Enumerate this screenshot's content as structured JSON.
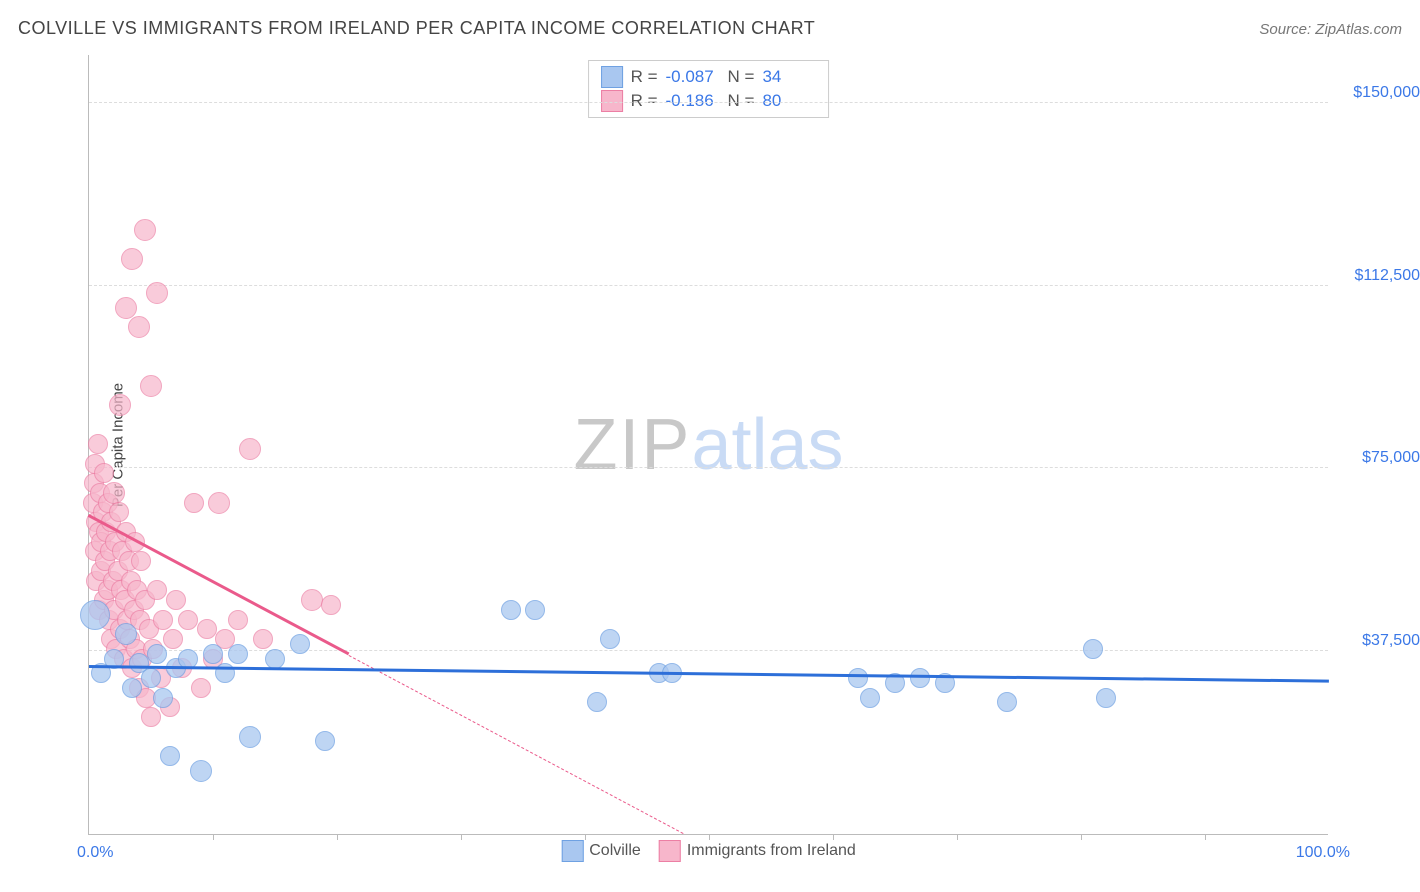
{
  "header": {
    "title": "COLVILLE VS IMMIGRANTS FROM IRELAND PER CAPITA INCOME CORRELATION CHART",
    "source_prefix": "Source: ",
    "source": "ZipAtlas.com"
  },
  "ylabel": "Per Capita Income",
  "watermark": {
    "part1": "ZIP",
    "part2": "atlas"
  },
  "chart": {
    "type": "scatter",
    "xlim": [
      0,
      100
    ],
    "ylim": [
      0,
      160000
    ],
    "ytick_values": [
      37500,
      75000,
      112500,
      150000
    ],
    "ytick_labels": [
      "$37,500",
      "$75,000",
      "$112,500",
      "$150,000"
    ],
    "xtick_positions": [
      10,
      20,
      30,
      40,
      50,
      60,
      70,
      80,
      90
    ],
    "xlabel_min": "0.0%",
    "xlabel_max": "100.0%",
    "background_color": "#ffffff",
    "grid_color": "#dddddd",
    "axis_color": "#bbbbbb",
    "tick_label_color": "#3b78e7"
  },
  "series": {
    "colville": {
      "label": "Colville",
      "fill": "#a9c7f0",
      "stroke": "#6fa1e2",
      "opacity": 0.75,
      "marker_radius": 9,
      "trend": {
        "x1": 0,
        "y1": 34000,
        "x2": 100,
        "y2": 31000,
        "color": "#2d6fd9",
        "width": 3,
        "dashed_from": null
      },
      "stats": {
        "r": "-0.087",
        "n": "34"
      },
      "points": [
        {
          "x": 0.5,
          "y": 45000,
          "r": 14
        },
        {
          "x": 1.0,
          "y": 33000,
          "r": 9
        },
        {
          "x": 2.0,
          "y": 36000,
          "r": 9
        },
        {
          "x": 3.0,
          "y": 41000,
          "r": 10
        },
        {
          "x": 3.5,
          "y": 30000,
          "r": 9
        },
        {
          "x": 4.0,
          "y": 35000,
          "r": 9
        },
        {
          "x": 5.0,
          "y": 32000,
          "r": 9
        },
        {
          "x": 5.5,
          "y": 37000,
          "r": 9
        },
        {
          "x": 6.0,
          "y": 28000,
          "r": 9
        },
        {
          "x": 6.5,
          "y": 16000,
          "r": 9
        },
        {
          "x": 7.0,
          "y": 34000,
          "r": 9
        },
        {
          "x": 8.0,
          "y": 36000,
          "r": 9
        },
        {
          "x": 9.0,
          "y": 13000,
          "r": 10
        },
        {
          "x": 10.0,
          "y": 37000,
          "r": 9
        },
        {
          "x": 11.0,
          "y": 33000,
          "r": 9
        },
        {
          "x": 12.0,
          "y": 37000,
          "r": 9
        },
        {
          "x": 13.0,
          "y": 20000,
          "r": 10
        },
        {
          "x": 15.0,
          "y": 36000,
          "r": 9
        },
        {
          "x": 17.0,
          "y": 39000,
          "r": 9
        },
        {
          "x": 19.0,
          "y": 19000,
          "r": 9
        },
        {
          "x": 34.0,
          "y": 46000,
          "r": 9
        },
        {
          "x": 36.0,
          "y": 46000,
          "r": 9
        },
        {
          "x": 41.0,
          "y": 27000,
          "r": 9
        },
        {
          "x": 42.0,
          "y": 40000,
          "r": 9
        },
        {
          "x": 46.0,
          "y": 33000,
          "r": 9
        },
        {
          "x": 47.0,
          "y": 33000,
          "r": 9
        },
        {
          "x": 62.0,
          "y": 32000,
          "r": 9
        },
        {
          "x": 63.0,
          "y": 28000,
          "r": 9
        },
        {
          "x": 65.0,
          "y": 31000,
          "r": 9
        },
        {
          "x": 67.0,
          "y": 32000,
          "r": 9
        },
        {
          "x": 69.0,
          "y": 31000,
          "r": 9
        },
        {
          "x": 74.0,
          "y": 27000,
          "r": 9
        },
        {
          "x": 81.0,
          "y": 38000,
          "r": 9
        },
        {
          "x": 82.0,
          "y": 28000,
          "r": 9
        }
      ]
    },
    "ireland": {
      "label": "Immigrants from Ireland",
      "fill": "#f7b6cb",
      "stroke": "#ec7fa4",
      "opacity": 0.7,
      "marker_radius": 9,
      "trend": {
        "x1": 0,
        "y1": 65000,
        "x2": 48,
        "y2": 0,
        "color": "#ea5a8b",
        "width": 3,
        "dashed_from": 21
      },
      "stats": {
        "r": "-0.186",
        "n": "80"
      },
      "points": [
        {
          "x": 0.3,
          "y": 68000,
          "r": 9
        },
        {
          "x": 0.4,
          "y": 72000,
          "r": 9
        },
        {
          "x": 0.5,
          "y": 58000,
          "r": 9
        },
        {
          "x": 0.5,
          "y": 76000,
          "r": 9
        },
        {
          "x": 0.6,
          "y": 64000,
          "r": 9
        },
        {
          "x": 0.6,
          "y": 52000,
          "r": 9
        },
        {
          "x": 0.7,
          "y": 80000,
          "r": 9
        },
        {
          "x": 0.8,
          "y": 62000,
          "r": 9
        },
        {
          "x": 0.8,
          "y": 46000,
          "r": 9
        },
        {
          "x": 0.9,
          "y": 70000,
          "r": 9
        },
        {
          "x": 1.0,
          "y": 54000,
          "r": 9
        },
        {
          "x": 1.0,
          "y": 60000,
          "r": 9
        },
        {
          "x": 1.1,
          "y": 66000,
          "r": 9
        },
        {
          "x": 1.2,
          "y": 48000,
          "r": 9
        },
        {
          "x": 1.2,
          "y": 74000,
          "r": 9
        },
        {
          "x": 1.3,
          "y": 56000,
          "r": 9
        },
        {
          "x": 1.4,
          "y": 62000,
          "r": 9
        },
        {
          "x": 1.5,
          "y": 50000,
          "r": 9
        },
        {
          "x": 1.5,
          "y": 68000,
          "r": 9
        },
        {
          "x": 1.6,
          "y": 44000,
          "r": 9
        },
        {
          "x": 1.7,
          "y": 58000,
          "r": 9
        },
        {
          "x": 1.8,
          "y": 64000,
          "r": 9
        },
        {
          "x": 1.8,
          "y": 40000,
          "r": 9
        },
        {
          "x": 1.9,
          "y": 52000,
          "r": 9
        },
        {
          "x": 2.0,
          "y": 70000,
          "r": 10
        },
        {
          "x": 2.0,
          "y": 46000,
          "r": 9
        },
        {
          "x": 2.1,
          "y": 60000,
          "r": 9
        },
        {
          "x": 2.2,
          "y": 38000,
          "r": 9
        },
        {
          "x": 2.3,
          "y": 54000,
          "r": 9
        },
        {
          "x": 2.4,
          "y": 66000,
          "r": 9
        },
        {
          "x": 2.5,
          "y": 42000,
          "r": 9
        },
        {
          "x": 2.5,
          "y": 88000,
          "r": 10
        },
        {
          "x": 2.6,
          "y": 50000,
          "r": 9
        },
        {
          "x": 2.7,
          "y": 58000,
          "r": 9
        },
        {
          "x": 2.8,
          "y": 36000,
          "r": 9
        },
        {
          "x": 2.9,
          "y": 48000,
          "r": 9
        },
        {
          "x": 3.0,
          "y": 62000,
          "r": 9
        },
        {
          "x": 3.0,
          "y": 108000,
          "r": 10
        },
        {
          "x": 3.1,
          "y": 44000,
          "r": 9
        },
        {
          "x": 3.2,
          "y": 56000,
          "r": 9
        },
        {
          "x": 3.3,
          "y": 40000,
          "r": 9
        },
        {
          "x": 3.4,
          "y": 52000,
          "r": 9
        },
        {
          "x": 3.5,
          "y": 34000,
          "r": 9
        },
        {
          "x": 3.5,
          "y": 118000,
          "r": 10
        },
        {
          "x": 3.6,
          "y": 46000,
          "r": 9
        },
        {
          "x": 3.7,
          "y": 60000,
          "r": 9
        },
        {
          "x": 3.8,
          "y": 38000,
          "r": 9
        },
        {
          "x": 3.9,
          "y": 50000,
          "r": 9
        },
        {
          "x": 4.0,
          "y": 30000,
          "r": 9
        },
        {
          "x": 4.0,
          "y": 104000,
          "r": 10
        },
        {
          "x": 4.1,
          "y": 44000,
          "r": 9
        },
        {
          "x": 4.2,
          "y": 56000,
          "r": 9
        },
        {
          "x": 4.3,
          "y": 36000,
          "r": 9
        },
        {
          "x": 4.5,
          "y": 48000,
          "r": 9
        },
        {
          "x": 4.5,
          "y": 124000,
          "r": 10
        },
        {
          "x": 4.6,
          "y": 28000,
          "r": 9
        },
        {
          "x": 4.8,
          "y": 42000,
          "r": 9
        },
        {
          "x": 5.0,
          "y": 92000,
          "r": 10
        },
        {
          "x": 5.0,
          "y": 24000,
          "r": 9
        },
        {
          "x": 5.2,
          "y": 38000,
          "r": 9
        },
        {
          "x": 5.5,
          "y": 50000,
          "r": 9
        },
        {
          "x": 5.5,
          "y": 111000,
          "r": 10
        },
        {
          "x": 5.8,
          "y": 32000,
          "r": 9
        },
        {
          "x": 6.0,
          "y": 44000,
          "r": 9
        },
        {
          "x": 6.5,
          "y": 26000,
          "r": 9
        },
        {
          "x": 6.8,
          "y": 40000,
          "r": 9
        },
        {
          "x": 7.0,
          "y": 48000,
          "r": 9
        },
        {
          "x": 7.5,
          "y": 34000,
          "r": 9
        },
        {
          "x": 8.0,
          "y": 44000,
          "r": 9
        },
        {
          "x": 8.5,
          "y": 68000,
          "r": 9
        },
        {
          "x": 9.0,
          "y": 30000,
          "r": 9
        },
        {
          "x": 9.5,
          "y": 42000,
          "r": 9
        },
        {
          "x": 10.0,
          "y": 36000,
          "r": 9
        },
        {
          "x": 10.5,
          "y": 68000,
          "r": 10
        },
        {
          "x": 11.0,
          "y": 40000,
          "r": 9
        },
        {
          "x": 12.0,
          "y": 44000,
          "r": 9
        },
        {
          "x": 13.0,
          "y": 79000,
          "r": 10
        },
        {
          "x": 14.0,
          "y": 40000,
          "r": 9
        },
        {
          "x": 18.0,
          "y": 48000,
          "r": 10
        },
        {
          "x": 19.5,
          "y": 47000,
          "r": 9
        }
      ]
    }
  },
  "stats_legend": {
    "r_label": "R =",
    "n_label": "N ="
  }
}
